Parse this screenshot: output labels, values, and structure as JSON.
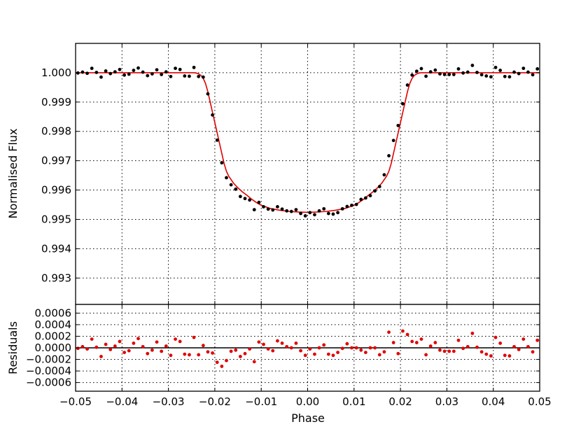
{
  "chart_data": [
    {
      "type": "scatter",
      "panel": "main",
      "xlabel": "Phase",
      "ylabel": "Normalised Flux",
      "xlim": [
        -0.05,
        0.05
      ],
      "ylim": [
        0.9921,
        1.001
      ],
      "x_ticks": [
        -0.05,
        -0.04,
        -0.03,
        -0.02,
        -0.01,
        0.0,
        0.01,
        0.02,
        0.03,
        0.04,
        0.05
      ],
      "x_tick_labels": [
        "−0.05",
        "−0.04",
        "−0.03",
        "−0.02",
        "−0.01",
        "0.00",
        "0.01",
        "0.02",
        "0.03",
        "0.04",
        "0.05"
      ],
      "y_ticks": [
        0.993,
        0.994,
        0.995,
        0.996,
        0.997,
        0.998,
        0.999,
        1.0
      ],
      "y_tick_labels": [
        "0.993",
        "0.994",
        "0.995",
        "0.996",
        "0.997",
        "0.998",
        "0.999",
        "1.000"
      ],
      "grid": true,
      "series": [
        {
          "kind": "points",
          "color": "#000000",
          "x": [
            -0.0495,
            -0.0485,
            -0.0475,
            -0.0465,
            -0.0455,
            -0.0445,
            -0.0435,
            -0.0425,
            -0.0415,
            -0.0405,
            -0.0395,
            -0.0385,
            -0.0375,
            -0.0365,
            -0.0355,
            -0.0345,
            -0.0335,
            -0.0325,
            -0.0315,
            -0.0305,
            -0.0295,
            -0.0285,
            -0.0275,
            -0.0265,
            -0.0255,
            -0.0245,
            -0.0235,
            -0.0225,
            -0.0215,
            -0.0205,
            -0.0195,
            -0.0185,
            -0.0175,
            -0.0165,
            -0.0155,
            -0.0145,
            -0.0135,
            -0.0125,
            -0.0115,
            -0.0105,
            -0.0095,
            -0.0085,
            -0.0075,
            -0.0065,
            -0.0055,
            -0.0045,
            -0.0035,
            -0.0025,
            -0.0015,
            -0.0005,
            0.0005,
            0.0015,
            0.0025,
            0.0035,
            0.0045,
            0.0055,
            0.0065,
            0.0075,
            0.0085,
            0.0095,
            0.0105,
            0.0115,
            0.0125,
            0.0135,
            0.0145,
            0.0155,
            0.0165,
            0.0175,
            0.0185,
            0.0195,
            0.0205,
            0.0215,
            0.0225,
            0.0235,
            0.0245,
            0.0255,
            0.0265,
            0.0275,
            0.0285,
            0.0295,
            0.0305,
            0.0315,
            0.0325,
            0.0335,
            0.0345,
            0.0355,
            0.0365,
            0.0375,
            0.0385,
            0.0395,
            0.0405,
            0.0415,
            0.0425,
            0.0435,
            0.0445,
            0.0455,
            0.0465,
            0.0475,
            0.0485,
            0.0495
          ],
          "y": [
            0.99999,
            1.00002,
            0.99998,
            1.00015,
            1.00001,
            0.99985,
            1.00006,
            0.99997,
            1.00003,
            1.00011,
            0.99992,
            0.99995,
            1.00008,
            1.00016,
            1.00002,
            0.9999,
            0.99996,
            1.0001,
            0.99994,
            1.00003,
            0.99987,
            1.00015,
            1.00011,
            0.99989,
            0.99988,
            1.00018,
            0.99987,
            0.99985,
            0.99928,
            0.99856,
            0.9977,
            0.99693,
            0.99642,
            0.99618,
            0.99603,
            0.99578,
            0.99571,
            0.99566,
            0.99533,
            0.99558,
            0.99543,
            0.99535,
            0.99532,
            0.99543,
            0.99535,
            0.99529,
            0.99527,
            0.99533,
            0.9952,
            0.99512,
            0.99523,
            0.99516,
            0.99529,
            0.99536,
            0.9952,
            0.99518,
            0.99523,
            0.99536,
            0.99544,
            0.99548,
            0.99551,
            0.99568,
            0.99573,
            0.99581,
            0.99597,
            0.99612,
            0.99652,
            0.99717,
            0.99769,
            0.9982,
            0.99894,
            0.99958,
            0.99992,
            1.00005,
            1.00014,
            0.99988,
            1.00003,
            1.00009,
            0.99996,
            0.99994,
            0.99994,
            0.99994,
            1.00013,
            0.99999,
            1.00002,
            1.00025,
            1.00001,
            0.99993,
            0.99989,
            0.99986,
            1.00018,
            1.00008,
            0.99987,
            0.99986,
            1.00002,
            0.99997,
            1.00015,
            1.00002,
            0.99993,
            1.00013
          ]
        },
        {
          "kind": "model-curve",
          "color": "#e00000",
          "x": [
            -0.05,
            -0.0245,
            -0.024,
            -0.0235,
            -0.023,
            -0.0225,
            -0.022,
            -0.0215,
            -0.021,
            -0.0205,
            -0.02,
            -0.0195,
            -0.019,
            -0.0185,
            -0.018,
            -0.0175,
            -0.017,
            -0.016,
            -0.015,
            -0.014,
            -0.013,
            -0.012,
            -0.011,
            -0.01,
            -0.008,
            -0.006,
            -0.004,
            -0.002,
            0.0,
            0.002,
            0.004,
            0.006,
            0.008,
            0.01,
            0.011,
            0.012,
            0.013,
            0.014,
            0.015,
            0.016,
            0.017,
            0.0175,
            0.018,
            0.0185,
            0.019,
            0.0195,
            0.02,
            0.0205,
            0.021,
            0.0215,
            0.022,
            0.0225,
            0.023,
            0.0235,
            0.024,
            0.0245,
            0.05
          ],
          "y": [
            1.0,
            1.0,
            0.99999,
            0.99996,
            0.99991,
            0.99981,
            0.99963,
            0.99935,
            0.999,
            0.99865,
            0.9983,
            0.99795,
            0.9976,
            0.99725,
            0.9969,
            0.99664,
            0.99647,
            0.99624,
            0.99607,
            0.99593,
            0.99581,
            0.99568,
            0.99557,
            0.99548,
            0.99537,
            0.99531,
            0.99527,
            0.99525,
            0.99524,
            0.99525,
            0.99527,
            0.99531,
            0.99537,
            0.99548,
            0.99557,
            0.99568,
            0.99581,
            0.99593,
            0.99607,
            0.99624,
            0.99647,
            0.99664,
            0.9969,
            0.99725,
            0.9976,
            0.99795,
            0.9983,
            0.99865,
            0.999,
            0.99935,
            0.99963,
            0.99981,
            0.99991,
            0.99996,
            0.99999,
            1.0,
            1.0
          ]
        }
      ]
    },
    {
      "type": "scatter",
      "panel": "residuals",
      "xlabel": "Phase",
      "ylabel": "Residuals",
      "xlim": [
        -0.05,
        0.05
      ],
      "ylim": [
        -0.00075,
        0.00075
      ],
      "x_ticks": [
        -0.05,
        -0.04,
        -0.03,
        -0.02,
        -0.01,
        0.0,
        0.01,
        0.02,
        0.03,
        0.04,
        0.05
      ],
      "x_tick_labels": [
        "−0.05",
        "−0.04",
        "−0.03",
        "−0.02",
        "−0.01",
        "0.00",
        "0.01",
        "0.02",
        "0.03",
        "0.04",
        "0.05"
      ],
      "y_ticks": [
        -0.0006,
        -0.0004,
        -0.0002,
        0.0,
        0.0002,
        0.0004,
        0.0006
      ],
      "y_tick_labels": [
        "−0.0006",
        "−0.0004",
        "−0.0002",
        "0.0000",
        "0.0002",
        "0.0004",
        "0.0006"
      ],
      "grid": true,
      "zero_line": 0.0,
      "series": [
        {
          "kind": "points",
          "color": "#e00000",
          "x": [
            -0.0495,
            -0.0485,
            -0.0475,
            -0.0465,
            -0.0455,
            -0.0445,
            -0.0435,
            -0.0425,
            -0.0415,
            -0.0405,
            -0.0395,
            -0.0385,
            -0.0375,
            -0.0365,
            -0.0355,
            -0.0345,
            -0.0335,
            -0.0325,
            -0.0315,
            -0.0305,
            -0.0295,
            -0.0285,
            -0.0275,
            -0.0265,
            -0.0255,
            -0.0245,
            -0.0235,
            -0.0225,
            -0.0215,
            -0.0205,
            -0.0195,
            -0.0185,
            -0.0175,
            -0.0165,
            -0.0155,
            -0.0145,
            -0.0135,
            -0.0125,
            -0.0115,
            -0.0105,
            -0.0095,
            -0.0085,
            -0.0075,
            -0.0065,
            -0.0055,
            -0.0045,
            -0.0035,
            -0.0025,
            -0.0015,
            -0.0005,
            0.0005,
            0.0015,
            0.0025,
            0.0035,
            0.0045,
            0.0055,
            0.0065,
            0.0075,
            0.0085,
            0.0095,
            0.0105,
            0.0115,
            0.0125,
            0.0135,
            0.0145,
            0.0155,
            0.0165,
            0.0175,
            0.0185,
            0.0195,
            0.0205,
            0.0215,
            0.0225,
            0.0235,
            0.0245,
            0.0255,
            0.0265,
            0.0275,
            0.0285,
            0.0295,
            0.0305,
            0.0315,
            0.0325,
            0.0335,
            0.0345,
            0.0355,
            0.0365,
            0.0375,
            0.0385,
            0.0395,
            0.0405,
            0.0415,
            0.0425,
            0.0435,
            0.0445,
            0.0455,
            0.0465,
            0.0475,
            0.0485,
            0.0495
          ],
          "y": [
            -1e-05,
            2e-05,
            -2e-05,
            0.00015,
            1e-05,
            -0.00015,
            6e-05,
            -3e-05,
            3e-05,
            0.00011,
            -8e-05,
            -5e-05,
            8e-05,
            0.00016,
            2e-05,
            -0.0001,
            -4e-05,
            0.0001,
            -6e-05,
            3e-05,
            -0.00013,
            0.00015,
            0.00011,
            -0.00011,
            -0.00012,
            0.00018,
            -0.00012,
            4e-05,
            -7e-05,
            -9e-05,
            -0.00025,
            -0.00032,
            -0.00022,
            -6e-05,
            -4e-05,
            -0.00015,
            -0.0001,
            -2e-05,
            -0.00024,
            0.0001,
            6e-05,
            -2e-05,
            -5e-05,
            0.00012,
            8e-05,
            2e-05,
            0.0,
            8e-05,
            -5e-05,
            -0.00013,
            -2e-05,
            -0.00011,
            0.0,
            5e-05,
            -0.00011,
            -0.00013,
            -8e-05,
            -1e-05,
            7e-05,
            0.0,
            0.0,
            -4e-05,
            -8e-05,
            0.0,
            0.0,
            -0.00012,
            -7e-05,
            0.00027,
            9e-05,
            -0.0001,
            0.00029,
            0.00023,
            0.00011,
            9e-05,
            0.00015,
            -0.00012,
            3e-05,
            9e-05,
            -4e-05,
            -6e-05,
            -6e-05,
            -6e-05,
            0.00013,
            -1e-05,
            2e-05,
            0.00025,
            1e-05,
            -7e-05,
            -0.00011,
            -0.00014,
            0.00018,
            8e-05,
            -0.00013,
            -0.00014,
            2e-05,
            -3e-05,
            0.00015,
            2e-05,
            -7e-05,
            0.00013
          ]
        }
      ]
    }
  ]
}
